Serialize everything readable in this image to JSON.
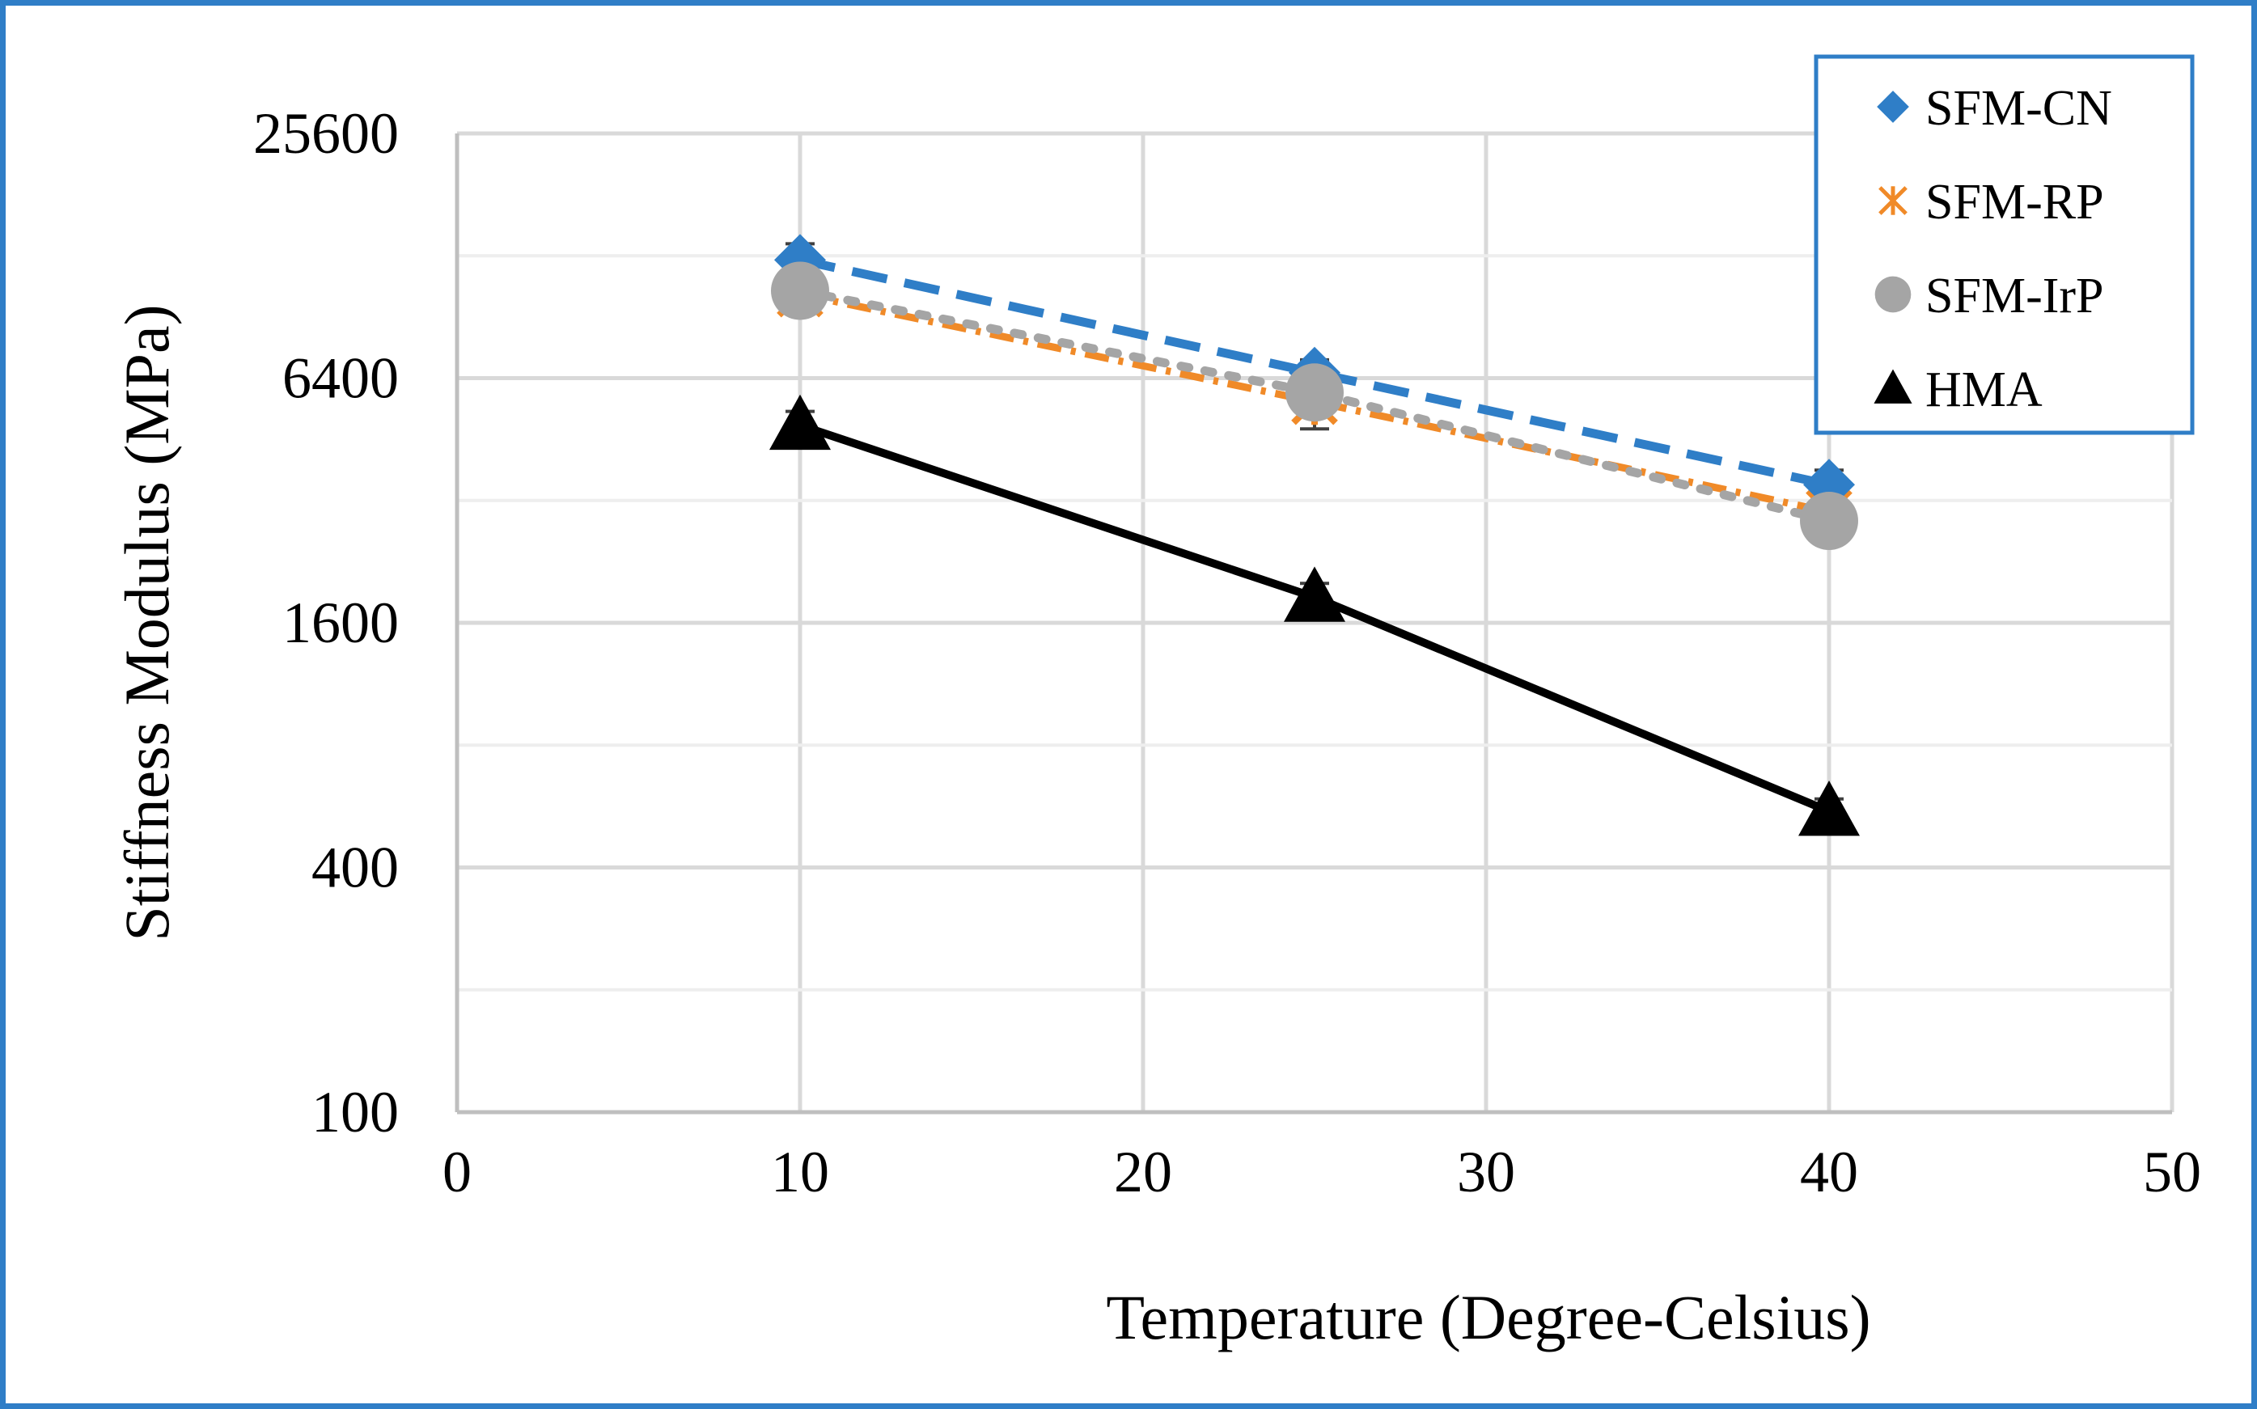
{
  "chart_data": {
    "type": "line",
    "title": "",
    "xlabel": "Temperature (Degree-Celsius)",
    "ylabel": "Stiffness Modulus (MPa)",
    "xlim": [
      0,
      50
    ],
    "ylim": [
      100,
      25600
    ],
    "y_scale": "log2",
    "x_ticks": [
      0,
      10,
      20,
      30,
      40,
      50
    ],
    "y_ticks": [
      100,
      400,
      1600,
      6400,
      25600
    ],
    "grid": true,
    "legend_position": "top-right",
    "x": [
      10,
      25,
      40
    ],
    "series": [
      {
        "name": "SFM-CN",
        "values": [
          12500,
          6600,
          3500
        ],
        "error": [
          1200,
          500,
          300
        ],
        "color": "#2f7ec7",
        "marker": "diamond",
        "line": "dashed"
      },
      {
        "name": "SFM-RP",
        "values": [
          10300,
          5600,
          3000
        ],
        "error": [
          900,
          800,
          300
        ],
        "color": "#f08a28",
        "marker": "star",
        "line": "dash-dot"
      },
      {
        "name": "SFM-IrP",
        "values": [
          10500,
          5900,
          2850
        ],
        "error": [
          900,
          500,
          300
        ],
        "color": "#a5a5a5",
        "marker": "circle",
        "line": "dotted"
      },
      {
        "name": "HMA",
        "values": [
          4900,
          1850,
          550
        ],
        "error": [
          400,
          150,
          40
        ],
        "color": "#000000",
        "marker": "triangle",
        "line": "solid"
      }
    ]
  }
}
